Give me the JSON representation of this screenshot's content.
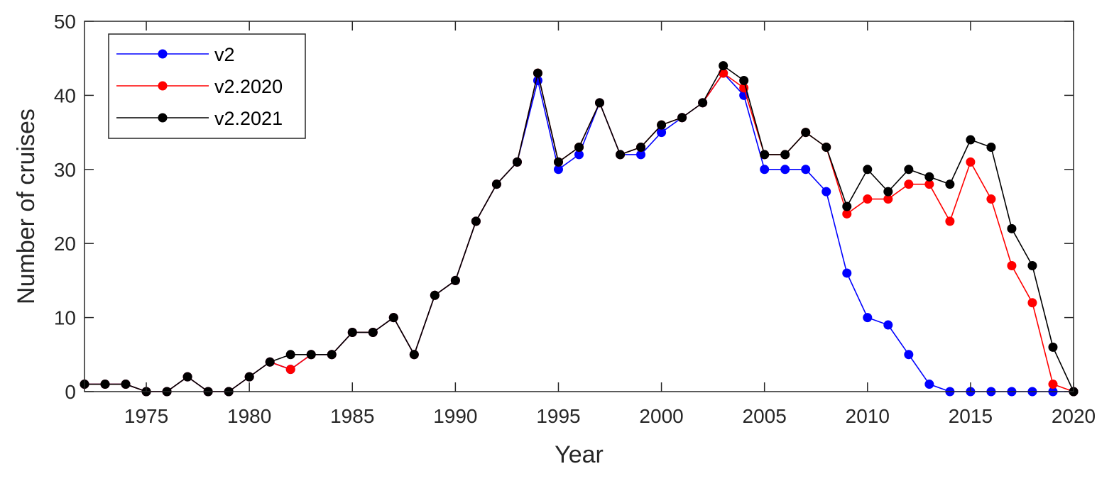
{
  "chart_data": {
    "type": "line",
    "title": "",
    "xlabel": "Year",
    "ylabel": "Number of cruises",
    "xlim": [
      1972,
      2020
    ],
    "ylim": [
      0,
      50
    ],
    "xticks": [
      1975,
      1980,
      1985,
      1990,
      1995,
      2000,
      2005,
      2010,
      2015,
      2020
    ],
    "yticks": [
      0,
      10,
      20,
      30,
      40,
      50
    ],
    "grid": false,
    "legend_position": "top-left",
    "x": [
      1972,
      1973,
      1974,
      1975,
      1976,
      1977,
      1978,
      1979,
      1980,
      1981,
      1982,
      1983,
      1984,
      1985,
      1986,
      1987,
      1988,
      1989,
      1990,
      1991,
      1992,
      1993,
      1994,
      1995,
      1996,
      1997,
      1998,
      1999,
      2000,
      2001,
      2002,
      2003,
      2004,
      2005,
      2006,
      2007,
      2008,
      2009,
      2010,
      2011,
      2012,
      2013,
      2014,
      2015,
      2016,
      2017,
      2018,
      2019,
      2020
    ],
    "series": [
      {
        "name": "v2",
        "color": "#0000ff",
        "values": [
          1,
          1,
          1,
          0,
          0,
          2,
          0,
          0,
          2,
          4,
          3,
          5,
          5,
          8,
          8,
          10,
          5,
          13,
          15,
          23,
          28,
          31,
          42,
          30,
          32,
          39,
          32,
          32,
          35,
          37,
          39,
          43,
          40,
          30,
          30,
          30,
          27,
          16,
          10,
          9,
          5,
          1,
          0,
          0,
          0,
          0,
          0,
          0,
          0
        ]
      },
      {
        "name": "v2.2020",
        "color": "#ff0000",
        "values": [
          1,
          1,
          1,
          0,
          0,
          2,
          0,
          0,
          2,
          4,
          3,
          5,
          5,
          8,
          8,
          10,
          5,
          13,
          15,
          23,
          28,
          31,
          43,
          31,
          33,
          39,
          32,
          33,
          36,
          37,
          39,
          43,
          41,
          32,
          32,
          35,
          33,
          24,
          26,
          26,
          28,
          28,
          23,
          31,
          26,
          17,
          12,
          1,
          0
        ]
      },
      {
        "name": "v2.2021",
        "color": "#000000",
        "values": [
          1,
          1,
          1,
          0,
          0,
          2,
          0,
          0,
          2,
          4,
          5,
          5,
          5,
          8,
          8,
          10,
          5,
          13,
          15,
          23,
          28,
          31,
          43,
          31,
          33,
          39,
          32,
          33,
          36,
          37,
          39,
          44,
          42,
          32,
          32,
          35,
          33,
          25,
          30,
          27,
          30,
          29,
          28,
          34,
          33,
          22,
          17,
          6,
          0
        ]
      }
    ]
  }
}
